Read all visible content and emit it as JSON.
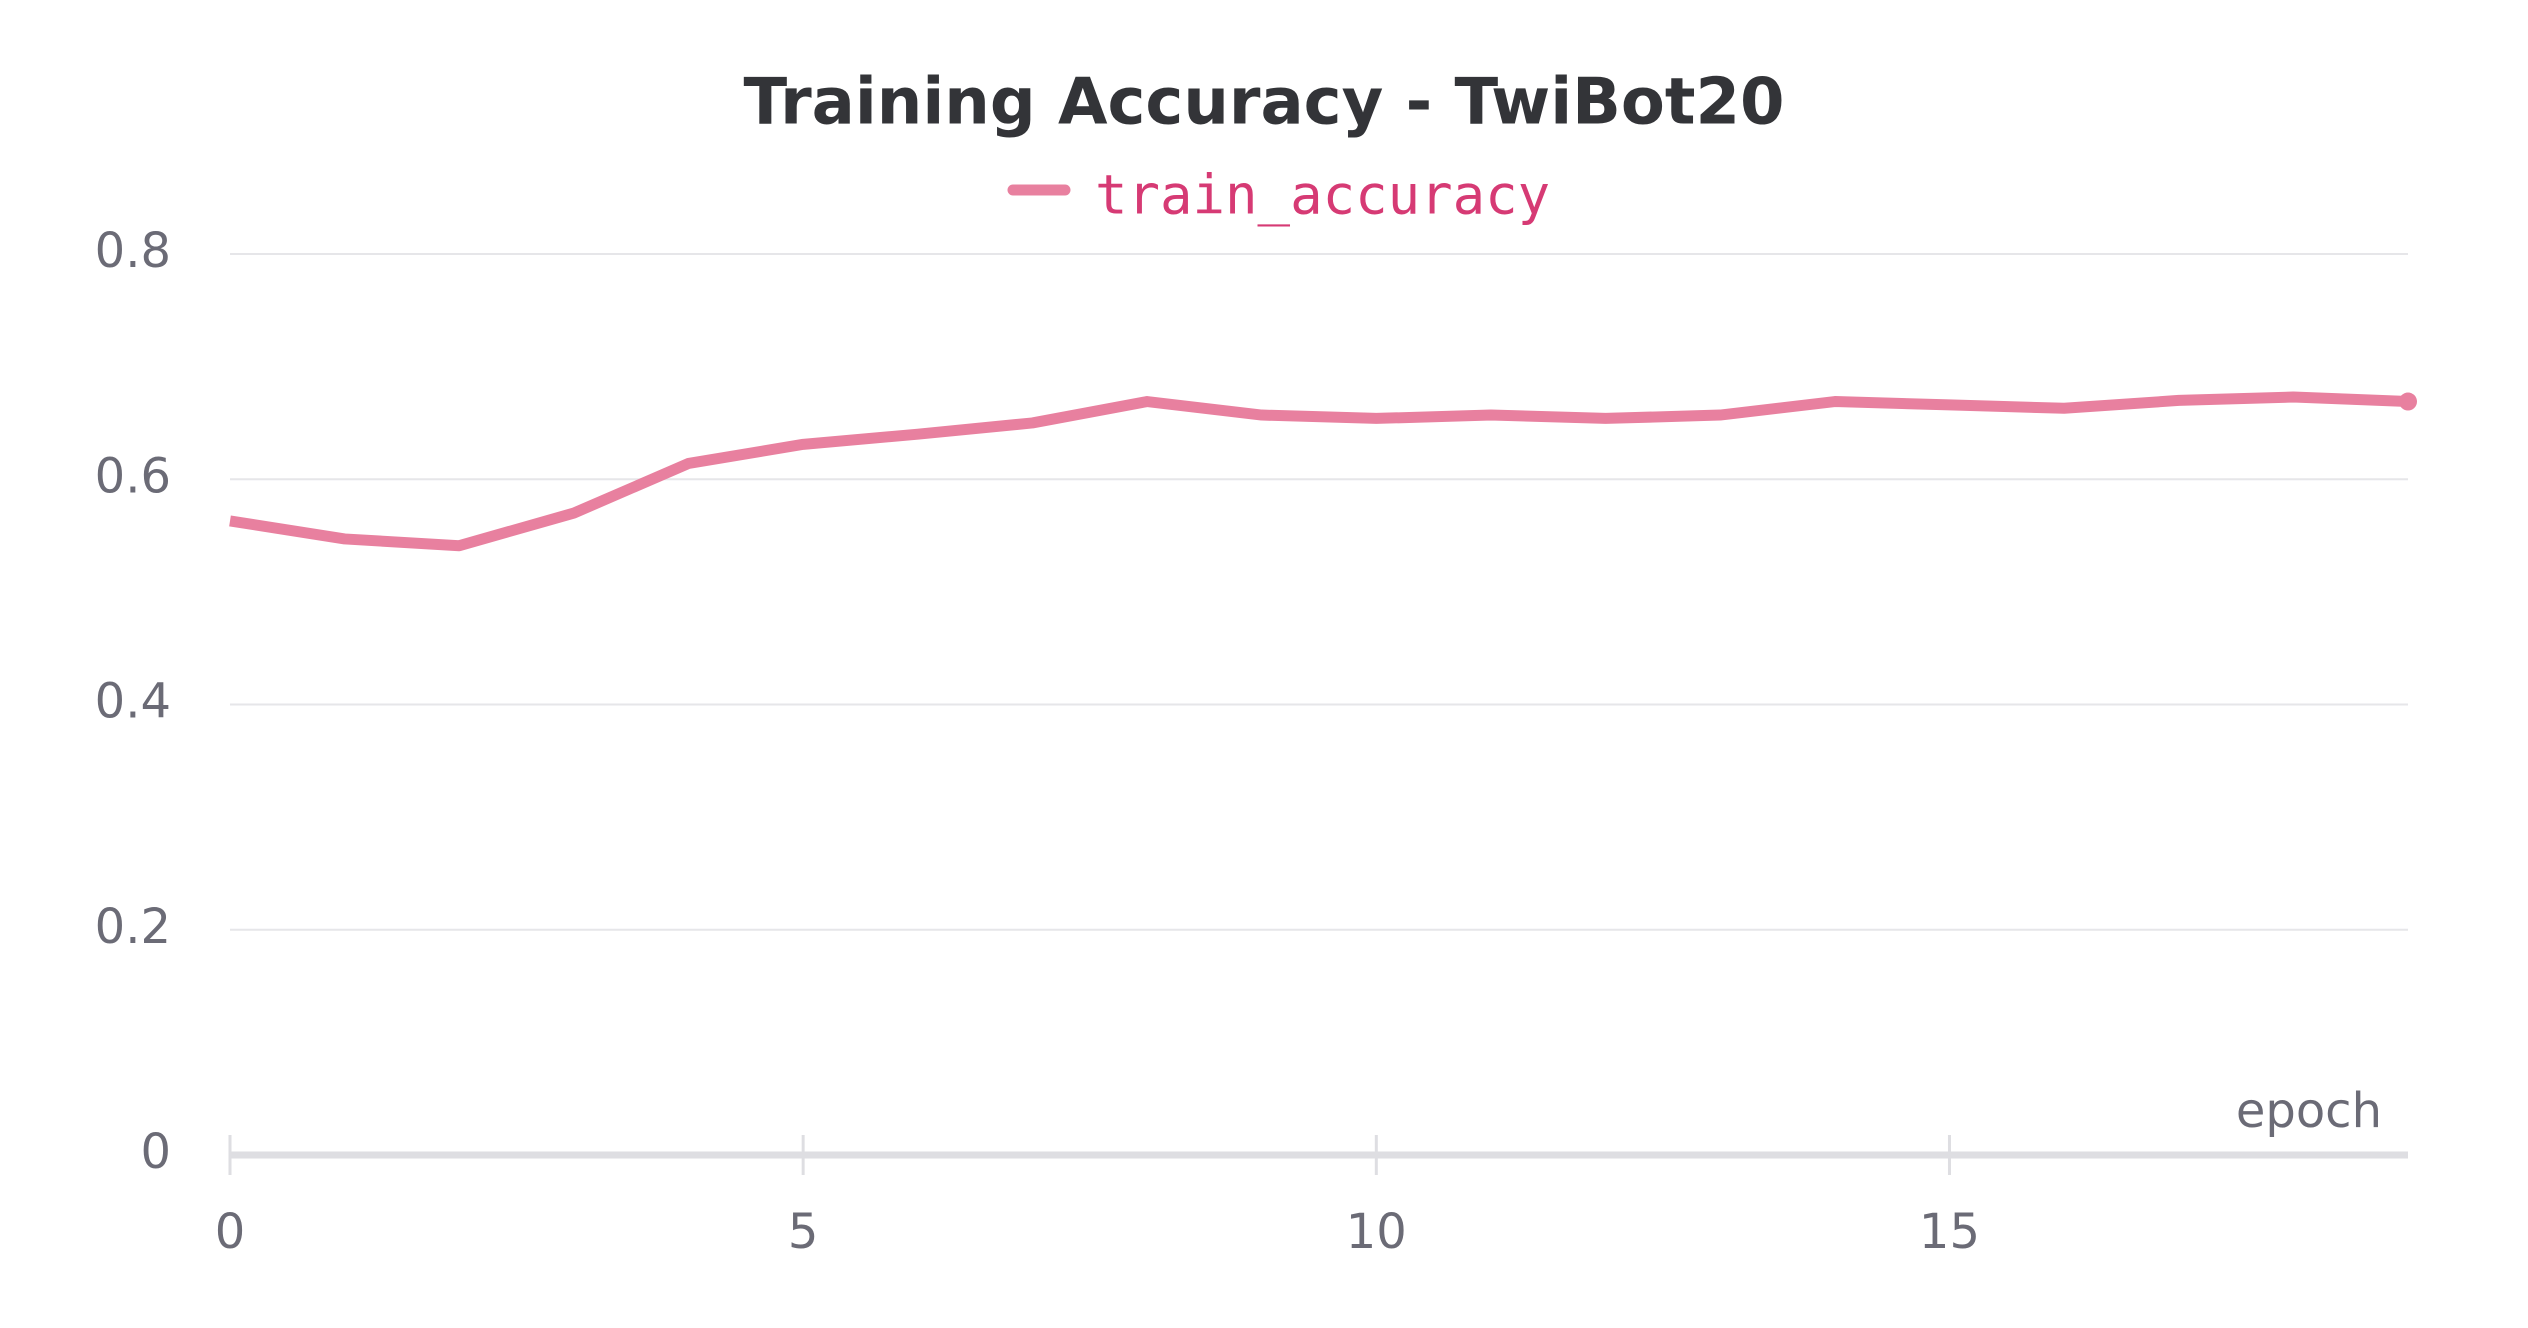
{
  "chart_data": {
    "type": "line",
    "title": "Training Accuracy - TwiBot20",
    "x_label": "epoch",
    "x": [
      0,
      1,
      2,
      3,
      4,
      5,
      6,
      7,
      8,
      9,
      10,
      11,
      12,
      13,
      14,
      15,
      16,
      17,
      18,
      19
    ],
    "series": [
      {
        "name": "train_accuracy",
        "color": "#e8809f",
        "values": [
          0.563,
          0.547,
          0.541,
          0.57,
          0.614,
          0.631,
          0.64,
          0.65,
          0.669,
          0.657,
          0.654,
          0.657,
          0.654,
          0.657,
          0.669,
          0.666,
          0.663,
          0.67,
          0.673,
          0.669
        ]
      }
    ],
    "xlim": [
      0,
      19
    ],
    "xticks": [
      0,
      5,
      10,
      15
    ],
    "ylim": [
      0,
      0.8
    ],
    "yticks": [
      0,
      0.2,
      0.4,
      0.6,
      0.8
    ],
    "grid": true
  }
}
